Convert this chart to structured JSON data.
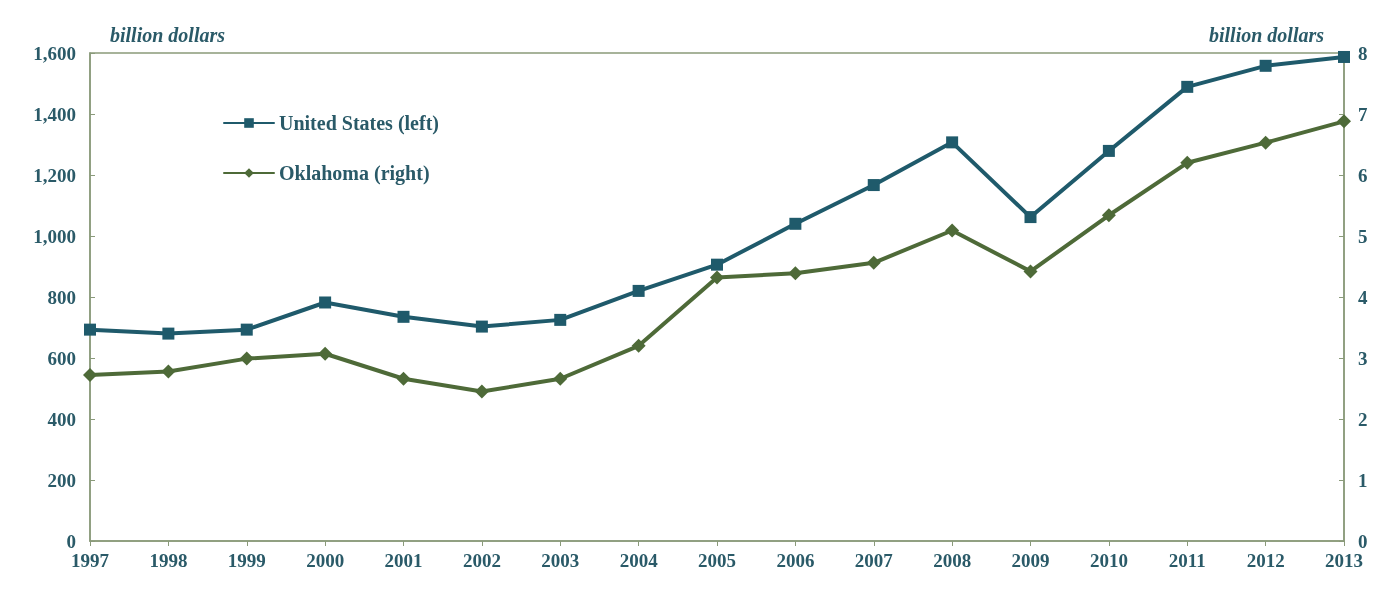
{
  "chart_data": {
    "type": "line",
    "ylabel": "billion dollars",
    "y2label": "billion dollars",
    "categories": [
      "1997",
      "1998",
      "1999",
      "2000",
      "2001",
      "2002",
      "2003",
      "2004",
      "2005",
      "2006",
      "2007",
      "2008",
      "2009",
      "2010",
      "2011",
      "2012",
      "2013"
    ],
    "series": [
      {
        "name": "United States (left)",
        "color": "#1f5a6b",
        "marker": "square",
        "values": [
          693,
          680,
          693,
          782,
          735,
          703,
          725,
          820,
          906,
          1040,
          1167,
          1307,
          1062,
          1279,
          1489,
          1558,
          1587
        ]
      },
      {
        "name": "Oklahoma (right)",
        "color": "#4e6a38",
        "marker": "diamond",
        "axis": "y2",
        "values": [
          2.72,
          2.78,
          2.99,
          3.07,
          2.66,
          2.45,
          2.66,
          3.2,
          4.32,
          4.39,
          4.56,
          5.09,
          4.42,
          5.34,
          6.2,
          6.53,
          6.88
        ]
      }
    ],
    "ylim": [
      0,
      1600
    ],
    "yticks": [
      0,
      200,
      400,
      600,
      800,
      {
        "value": 1000,
        "label": "1,000"
      },
      {
        "value": 1200,
        "label": "1,200"
      },
      {
        "value": 1400,
        "label": "1,400"
      },
      {
        "value": 1600,
        "label": "1,600"
      }
    ],
    "y2lim": [
      0,
      8
    ],
    "y2ticks": [
      0,
      1,
      2,
      3,
      4,
      5,
      6,
      7,
      8
    ],
    "grid": false,
    "legend": "top left",
    "line_style": "solid"
  }
}
